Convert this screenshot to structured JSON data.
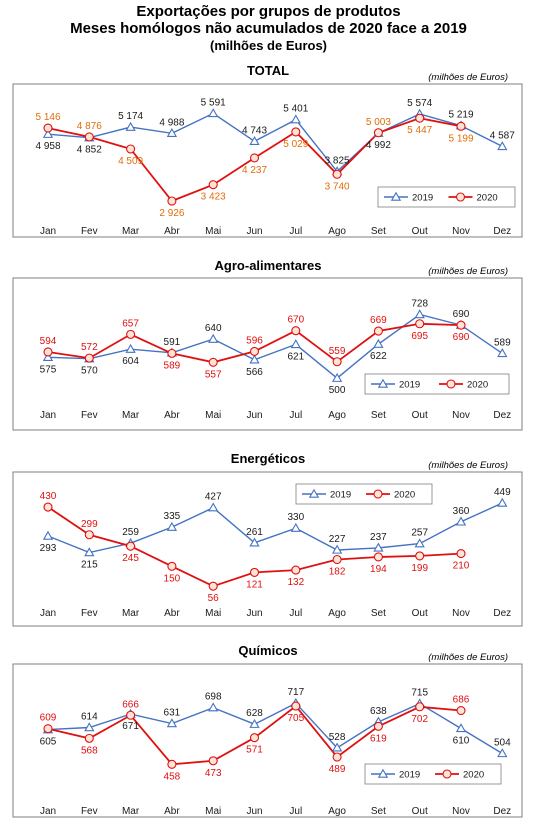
{
  "header": {
    "title": "Exportações por grupos de produtos",
    "subtitle": "Meses homólogos não acumulados de 2020 face a 2019",
    "unit_note": "(milhões de Euros)"
  },
  "colors": {
    "s2019": "#4472C4",
    "s2020": "#E01010",
    "lbl2019": "#1a1a1a",
    "lbl2020_total": "#E36C09",
    "lbl2020": "#E01010",
    "marker_fill": "#FCE4D6"
  },
  "chart_data": [
    {
      "type": "line",
      "title": "TOTAL",
      "unit_label": "(milhões de Euros)",
      "categories": [
        "Jan",
        "Fev",
        "Mar",
        "Abr",
        "Mai",
        "Jun",
        "Jul",
        "Ago",
        "Set",
        "Out",
        "Nov",
        "Dez"
      ],
      "series": [
        {
          "name": "2019",
          "values": [
            4958,
            4852,
            5174,
            4988,
            5591,
            4743,
            5401,
            3825,
            4992,
            5574,
            5219,
            4587
          ],
          "labels": [
            "4 958",
            "4 852",
            "5 174",
            "4 988",
            "5 591",
            "4 743",
            "5 401",
            "3 825",
            "4 992",
            "5 574",
            "5 219",
            "4 587"
          ]
        },
        {
          "name": "2020",
          "values": [
            5146,
            4876,
            4509,
            2926,
            3423,
            4237,
            5029,
            3740,
            5003,
            5447,
            5199,
            null
          ],
          "labels": [
            "5 146",
            "4 876",
            "4 509",
            "2 926",
            "3 423",
            "4 237",
            "5 029",
            "3 740",
            "5 003",
            "5 447",
            "5 199",
            ""
          ]
        }
      ],
      "ylim": [
        2500,
        6000
      ],
      "legend": "bottom-right"
    },
    {
      "type": "line",
      "title": "Agro-alimentares",
      "unit_label": "(milhões de Euros)",
      "categories": [
        "Jan",
        "Fev",
        "Mar",
        "Abr",
        "Mai",
        "Jun",
        "Jul",
        "Ago",
        "Set",
        "Out",
        "Nov",
        "Dez"
      ],
      "series": [
        {
          "name": "2019",
          "values": [
            575,
            570,
            604,
            591,
            640,
            566,
            621,
            500,
            622,
            728,
            690,
            589
          ],
          "labels": [
            "575",
            "570",
            "604",
            "591",
            "640",
            "566",
            "621",
            "500",
            "622",
            "728",
            "690",
            "589"
          ]
        },
        {
          "name": "2020",
          "values": [
            594,
            572,
            657,
            589,
            557,
            596,
            670,
            559,
            669,
            695,
            690,
            null
          ],
          "labels": [
            "594",
            "572",
            "657",
            "589",
            "557",
            "596",
            "670",
            "559",
            "669",
            "695",
            "690",
            ""
          ]
        }
      ],
      "ylim": [
        440,
        780
      ],
      "legend": "bottom-right"
    },
    {
      "type": "line",
      "title": "Energéticos",
      "unit_label": "(milhões de Euros)",
      "categories": [
        "Jan",
        "Fev",
        "Mar",
        "Abr",
        "Mai",
        "Jun",
        "Jul",
        "Ago",
        "Set",
        "Out",
        "Nov",
        "Dez"
      ],
      "series": [
        {
          "name": "2019",
          "values": [
            293,
            215,
            259,
            335,
            427,
            261,
            330,
            227,
            237,
            257,
            360,
            449
          ],
          "labels": [
            "293",
            "215",
            "259",
            "335",
            "427",
            "261",
            "330",
            "227",
            "237",
            "257",
            "360",
            "449"
          ]
        },
        {
          "name": "2020",
          "values": [
            430,
            299,
            245,
            150,
            56,
            121,
            132,
            182,
            194,
            199,
            210,
            null
          ],
          "labels": [
            "430",
            "299",
            "245",
            "150",
            "56",
            "121",
            "132",
            "182",
            "194",
            "199",
            "210",
            ""
          ]
        }
      ],
      "ylim": [
        0,
        520
      ],
      "legend": "top-center"
    },
    {
      "type": "line",
      "title": "Químicos",
      "unit_label": "(milhões de Euros)",
      "categories": [
        "Jan",
        "Fev",
        "Mar",
        "Abr",
        "Mai",
        "Jun",
        "Jul",
        "Ago",
        "Set",
        "Out",
        "Nov",
        "Dez"
      ],
      "series": [
        {
          "name": "2019",
          "values": [
            605,
            614,
            671,
            631,
            698,
            628,
            717,
            528,
            638,
            715,
            610,
            504
          ],
          "labels": [
            "605",
            "614",
            "671",
            "631",
            "698",
            "628",
            "717",
            "528",
            "638",
            "715",
            "610",
            "504"
          ]
        },
        {
          "name": "2020",
          "values": [
            609,
            568,
            666,
            458,
            473,
            571,
            705,
            489,
            619,
            702,
            686,
            null
          ],
          "labels": [
            "609",
            "568",
            "666",
            "458",
            "473",
            "571",
            "705",
            "489",
            "619",
            "702",
            "686",
            ""
          ]
        }
      ],
      "ylim": [
        400,
        790
      ],
      "legend": "bottom-right"
    }
  ]
}
